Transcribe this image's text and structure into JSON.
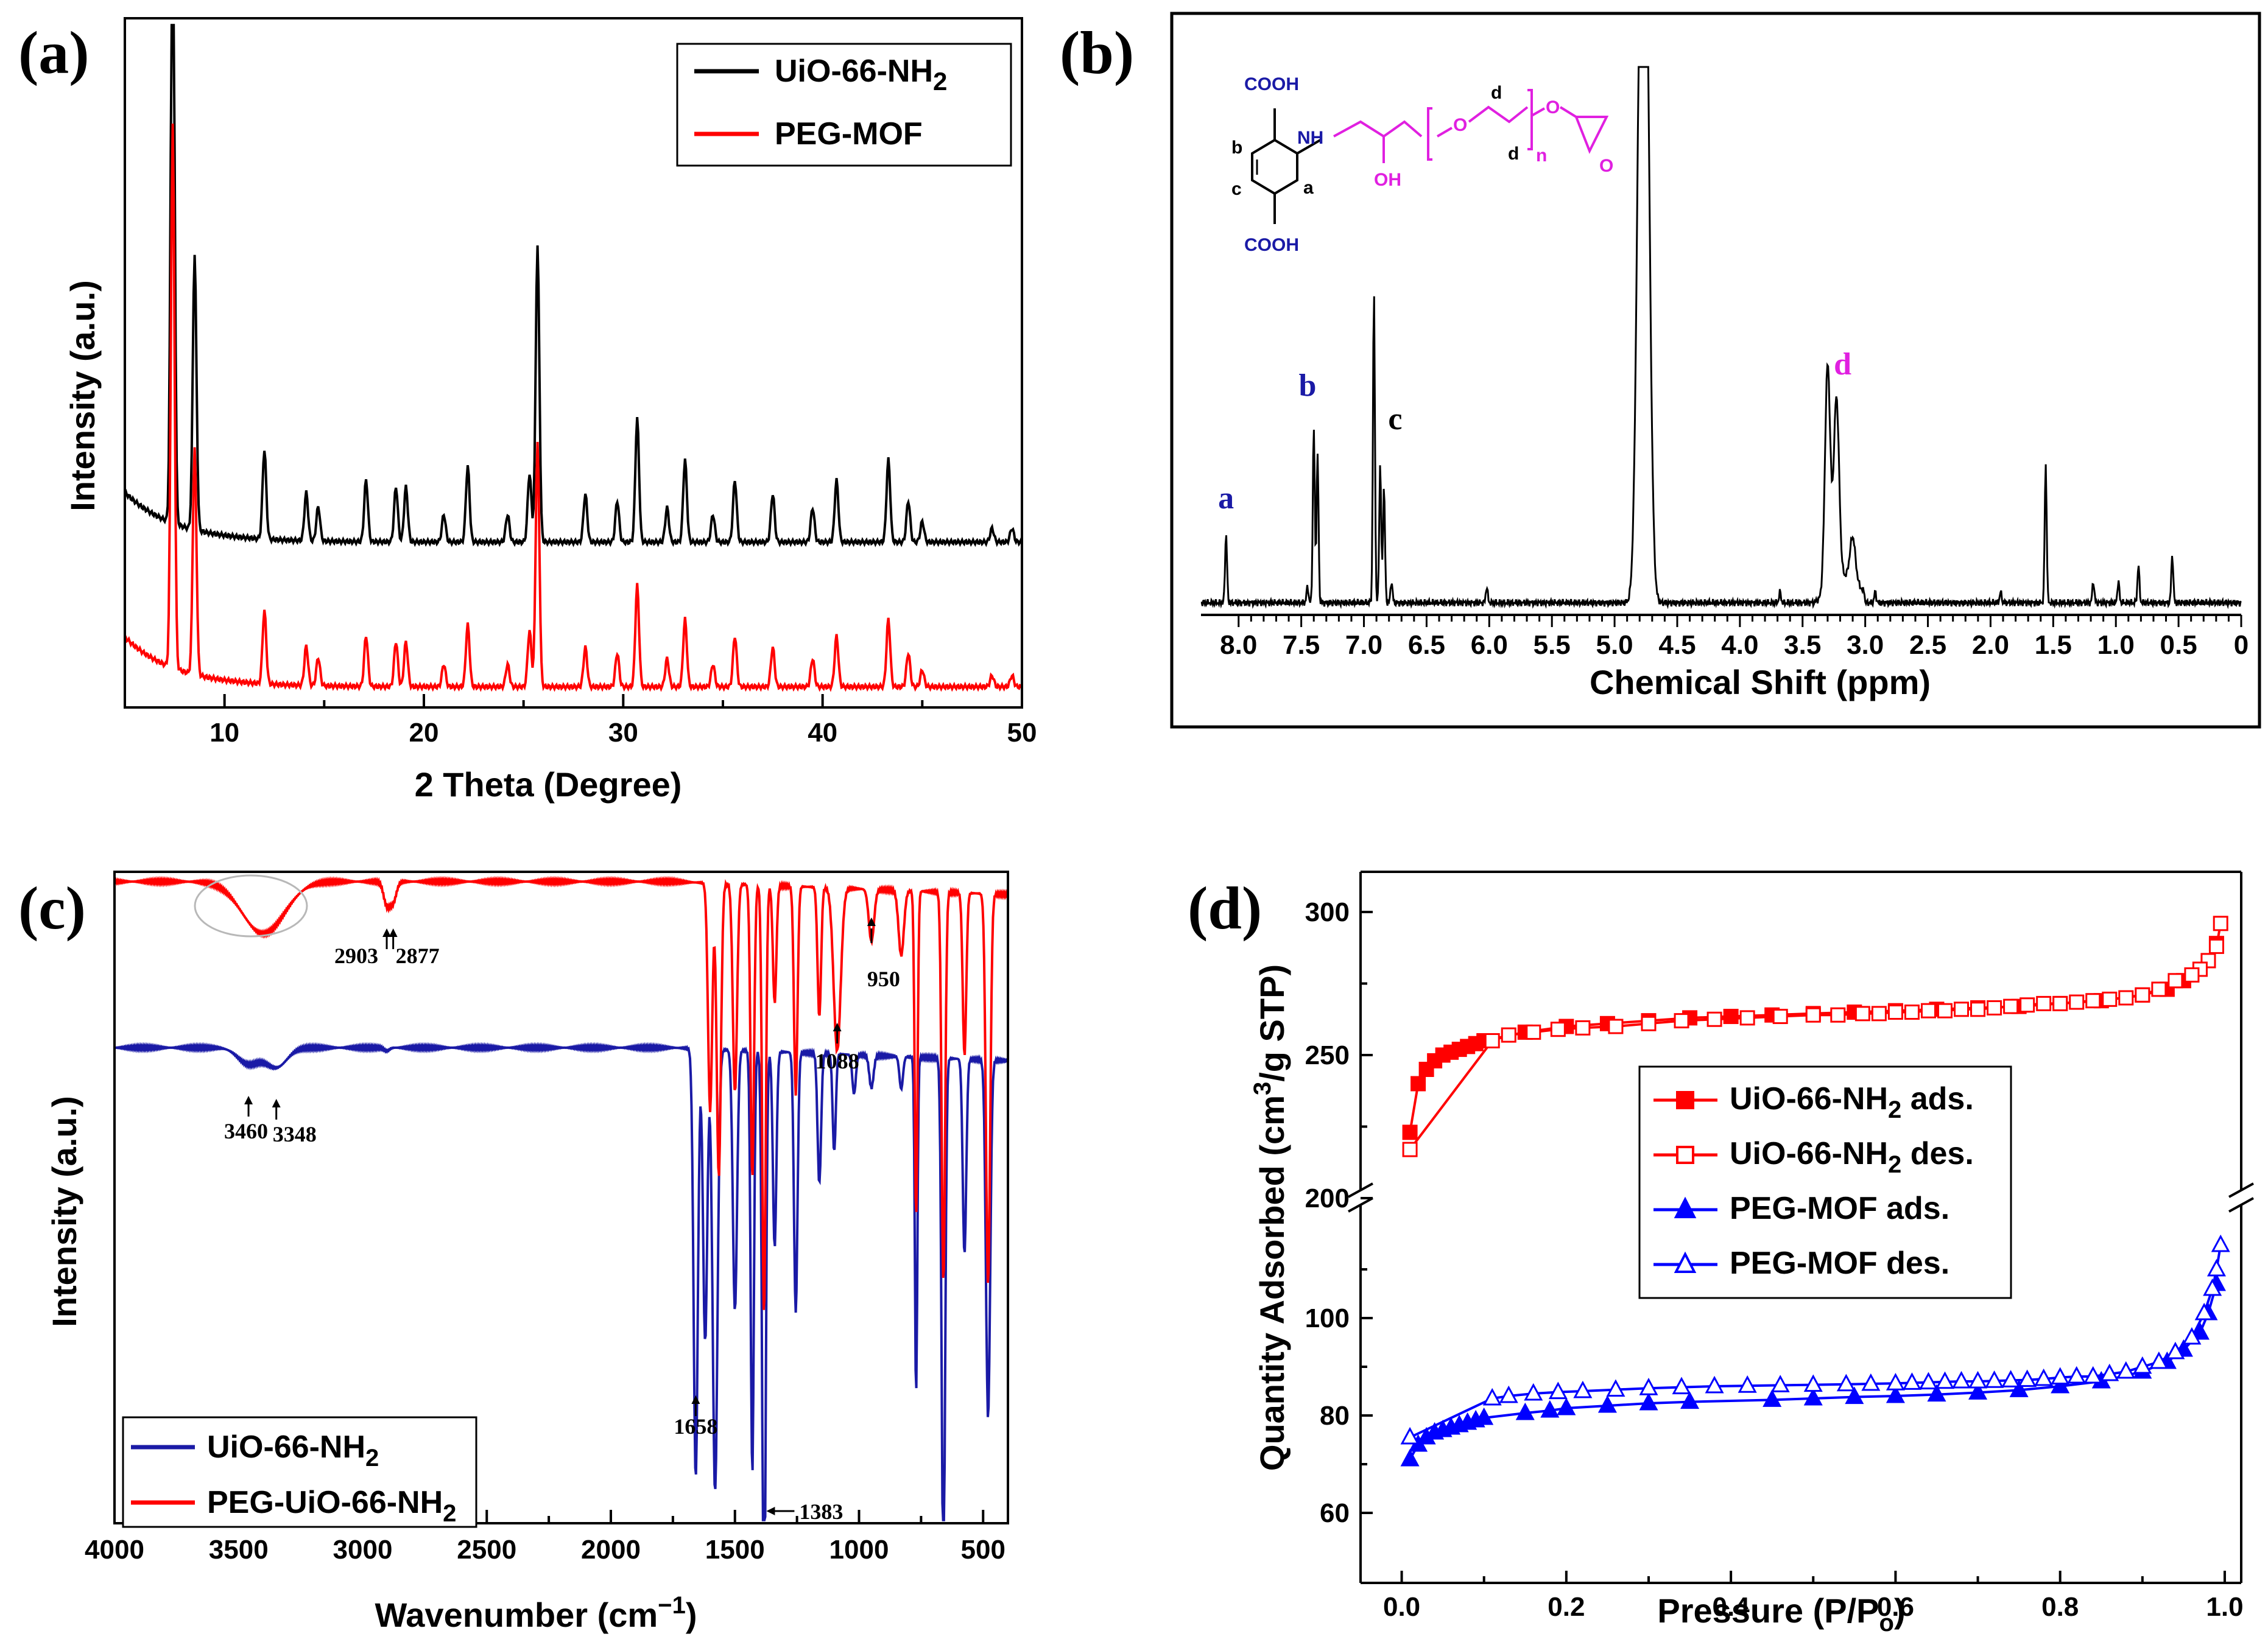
{
  "chart_data": [
    {
      "panel": "(a)",
      "type": "line",
      "xlabel": "2 Theta (Degree)",
      "ylabel": "Intensity (a.u.)",
      "xlim": [
        5,
        50
      ],
      "xticks": [
        10,
        20,
        30,
        40,
        50
      ],
      "series": [
        {
          "name": "UiO-66-NH",
          "sub": "2",
          "color": "#000000",
          "baseline": 0.24,
          "scale": 1.0
        },
        {
          "name": "PEG-MOF",
          "color": "#ff0000",
          "baseline": 0.03,
          "scale": 0.82
        }
      ],
      "peaks": [
        {
          "x": 7.4,
          "h": 0.96
        },
        {
          "x": 8.5,
          "h": 0.4
        },
        {
          "x": 12.0,
          "h": 0.13
        },
        {
          "x": 14.1,
          "h": 0.07
        },
        {
          "x": 14.7,
          "h": 0.05
        },
        {
          "x": 17.1,
          "h": 0.09
        },
        {
          "x": 18.6,
          "h": 0.08
        },
        {
          "x": 19.1,
          "h": 0.08
        },
        {
          "x": 21.0,
          "h": 0.04
        },
        {
          "x": 22.2,
          "h": 0.11
        },
        {
          "x": 24.2,
          "h": 0.04
        },
        {
          "x": 25.3,
          "h": 0.1
        },
        {
          "x": 25.7,
          "h": 0.43
        },
        {
          "x": 28.1,
          "h": 0.07
        },
        {
          "x": 29.7,
          "h": 0.06
        },
        {
          "x": 30.7,
          "h": 0.18
        },
        {
          "x": 32.2,
          "h": 0.05
        },
        {
          "x": 33.1,
          "h": 0.12
        },
        {
          "x": 34.5,
          "h": 0.04
        },
        {
          "x": 35.6,
          "h": 0.09
        },
        {
          "x": 37.5,
          "h": 0.07
        },
        {
          "x": 39.5,
          "h": 0.05
        },
        {
          "x": 40.7,
          "h": 0.09
        },
        {
          "x": 43.3,
          "h": 0.12
        },
        {
          "x": 44.3,
          "h": 0.06
        },
        {
          "x": 45.0,
          "h": 0.03
        },
        {
          "x": 48.5,
          "h": 0.02
        },
        {
          "x": 49.5,
          "h": 0.02
        }
      ]
    },
    {
      "panel": "(b)",
      "type": "line",
      "xlabel": "Chemical Shift (ppm)",
      "xlim": [
        8.3,
        0
      ],
      "xticks": [
        8.0,
        7.5,
        7.0,
        6.5,
        6.0,
        5.5,
        5.0,
        4.5,
        4.0,
        3.5,
        3.0,
        2.5,
        2.0,
        1.5,
        1.0,
        0.5,
        0
      ],
      "xtick_labels": [
        "8.0",
        "7.5",
        "7.0",
        "6.5",
        "6.0",
        "5.5",
        "5.0",
        "4.5",
        "4.0",
        "3.5",
        "3.0",
        "2.5",
        "2.0",
        "1.5",
        "1.0",
        "0.5",
        "0"
      ],
      "peaks": [
        {
          "x": 8.1,
          "h": 0.13
        },
        {
          "x": 7.45,
          "h": 0.03
        },
        {
          "x": 7.4,
          "h": 0.33
        },
        {
          "x": 7.37,
          "h": 0.28
        },
        {
          "x": 6.92,
          "h": 0.58
        },
        {
          "x": 6.87,
          "h": 0.26
        },
        {
          "x": 6.84,
          "h": 0.22
        },
        {
          "x": 6.78,
          "h": 0.04
        },
        {
          "x": 6.02,
          "h": 0.03
        },
        {
          "x": 4.79,
          "h": 1.0
        },
        {
          "x": 4.75,
          "h": 1.0
        },
        {
          "x": 3.68,
          "h": 0.02
        },
        {
          "x": 3.3,
          "h": 0.43
        },
        {
          "x": 3.23,
          "h": 0.35
        },
        {
          "x": 3.1,
          "h": 0.08
        },
        {
          "x": 2.92,
          "h": 0.02
        },
        {
          "x": 1.92,
          "h": 0.02
        },
        {
          "x": 1.56,
          "h": 0.26
        },
        {
          "x": 1.18,
          "h": 0.04
        },
        {
          "x": 0.98,
          "h": 0.04
        },
        {
          "x": 0.82,
          "h": 0.07
        },
        {
          "x": 0.55,
          "h": 0.09
        }
      ],
      "peak_labels": [
        {
          "text": "a",
          "x": 8.1,
          "color": "#1a1aa6"
        },
        {
          "text": "b",
          "x": 7.45,
          "color": "#1a1aa6"
        },
        {
          "text": "c",
          "x": 6.75,
          "color": "#000000"
        },
        {
          "text": "d",
          "x": 3.18,
          "color": "#e020e0"
        }
      ],
      "structure": {
        "cooh_top": "COOH",
        "cooh_bottom": "COOH",
        "nh": "NH",
        "oh": "OH",
        "o1": "O",
        "o2": "O",
        "o3": "O",
        "d1": "d",
        "d2": "d",
        "n": "n",
        "ring_b": "b",
        "ring_c": "c",
        "ring_a": "a"
      }
    },
    {
      "panel": "(c)",
      "type": "line",
      "xlabel": "Wavenumber (cm",
      "xlabel_sup": "−1",
      "xlabel_end": ")",
      "ylabel": "Intensity (a.u.)",
      "xlim": [
        4000,
        400
      ],
      "xticks": [
        4000,
        3500,
        3000,
        2500,
        2000,
        1500,
        1000,
        500
      ],
      "series": [
        {
          "name": "UiO-66-NH",
          "sub": "2",
          "color": "#1a1aa6",
          "baseline": 0.73
        },
        {
          "name": "PEG-UiO-66-NH",
          "sub": "2",
          "color": "#ff0000",
          "baseline": 0.985
        }
      ],
      "annotations": [
        "3460",
        "3348",
        "2903",
        "2877",
        "1658",
        "1383",
        "1088",
        "950"
      ]
    },
    {
      "panel": "(d)",
      "type": "scatter",
      "xlabel": "Pressure (P/P",
      "xlabel_sub": "o",
      "xlabel_end": ")",
      "ylabel": "Quantity Adsorbed (cm",
      "ylabel_sup": "3",
      "ylabel_end": "/g STP)",
      "xlim": [
        -0.05,
        1.02
      ],
      "xticks": [
        0.0,
        0.2,
        0.4,
        0.6,
        0.8,
        1.0
      ],
      "yticks_lower": [
        60,
        80,
        100
      ],
      "yticks_upper": [
        200,
        250,
        300
      ],
      "series": [
        {
          "name": "UiO-66-NH",
          "sub": "2",
          "suffix": " ads.",
          "color": "#ff0000",
          "marker": "square",
          "filled": true,
          "points": [
            [
              0.01,
              223
            ],
            [
              0.02,
              240
            ],
            [
              0.03,
              245
            ],
            [
              0.04,
              248
            ],
            [
              0.05,
              250
            ],
            [
              0.06,
              251
            ],
            [
              0.07,
              252
            ],
            [
              0.08,
              253
            ],
            [
              0.09,
              254
            ],
            [
              0.1,
              255
            ],
            [
              0.15,
              258
            ],
            [
              0.2,
              260
            ],
            [
              0.25,
              261
            ],
            [
              0.3,
              262
            ],
            [
              0.35,
              263
            ],
            [
              0.4,
              263.5
            ],
            [
              0.45,
              264
            ],
            [
              0.5,
              264.5
            ],
            [
              0.55,
              265
            ],
            [
              0.6,
              265.5
            ],
            [
              0.65,
              266
            ],
            [
              0.7,
              266.5
            ],
            [
              0.75,
              267
            ],
            [
              0.8,
              268
            ],
            [
              0.85,
              269
            ],
            [
              0.9,
              271
            ],
            [
              0.93,
              273
            ],
            [
              0.95,
              276
            ],
            [
              0.97,
              280
            ],
            [
              0.98,
              283
            ],
            [
              0.99,
              289
            ]
          ]
        },
        {
          "name": "UiO-66-NH",
          "sub": "2",
          "suffix": " des.",
          "color": "#ff0000",
          "marker": "square",
          "filled": false,
          "points": [
            [
              0.995,
              296
            ],
            [
              0.99,
              288
            ],
            [
              0.98,
              283
            ],
            [
              0.97,
              280
            ],
            [
              0.96,
              278
            ],
            [
              0.94,
              276
            ],
            [
              0.92,
              273
            ],
            [
              0.9,
              271
            ],
            [
              0.88,
              270
            ],
            [
              0.86,
              269.5
            ],
            [
              0.84,
              269
            ],
            [
              0.82,
              268.5
            ],
            [
              0.8,
              268
            ],
            [
              0.78,
              268
            ],
            [
              0.76,
              267.5
            ],
            [
              0.74,
              267
            ],
            [
              0.72,
              266.5
            ],
            [
              0.7,
              266
            ],
            [
              0.68,
              266
            ],
            [
              0.66,
              265.5
            ],
            [
              0.64,
              265.5
            ],
            [
              0.62,
              265
            ],
            [
              0.6,
              265
            ],
            [
              0.58,
              264.5
            ],
            [
              0.56,
              264.5
            ],
            [
              0.53,
              264
            ],
            [
              0.5,
              264
            ],
            [
              0.46,
              263.5
            ],
            [
              0.42,
              263
            ],
            [
              0.38,
              262.5
            ],
            [
              0.34,
              262
            ],
            [
              0.3,
              261
            ],
            [
              0.26,
              260
            ],
            [
              0.22,
              259.5
            ],
            [
              0.19,
              259
            ],
            [
              0.16,
              258
            ],
            [
              0.13,
              257
            ],
            [
              0.11,
              255
            ],
            [
              0.01,
              217
            ]
          ]
        },
        {
          "name": "PEG-MOF",
          "suffix": " ads.",
          "color": "#0000ff",
          "marker": "triangle",
          "filled": true,
          "points": [
            [
              0.01,
              71
            ],
            [
              0.02,
              74
            ],
            [
              0.03,
              75.5
            ],
            [
              0.04,
              76.5
            ],
            [
              0.05,
              77
            ],
            [
              0.06,
              77.5
            ],
            [
              0.07,
              78
            ],
            [
              0.08,
              78.5
            ],
            [
              0.09,
              79
            ],
            [
              0.1,
              79.5
            ],
            [
              0.15,
              80.5
            ],
            [
              0.18,
              81
            ],
            [
              0.2,
              81.5
            ],
            [
              0.25,
              82
            ],
            [
              0.3,
              82.5
            ],
            [
              0.35,
              82.8
            ],
            [
              0.45,
              83.2
            ],
            [
              0.5,
              83.5
            ],
            [
              0.55,
              83.8
            ],
            [
              0.6,
              84
            ],
            [
              0.65,
              84.3
            ],
            [
              0.7,
              84.7
            ],
            [
              0.75,
              85.2
            ],
            [
              0.8,
              86
            ],
            [
              0.85,
              87
            ],
            [
              0.9,
              89
            ],
            [
              0.93,
              91
            ],
            [
              0.95,
              93.5
            ],
            [
              0.97,
              97
            ],
            [
              0.98,
              101
            ],
            [
              0.99,
              107
            ]
          ]
        },
        {
          "name": "PEG-MOF",
          "suffix": " des.",
          "color": "#0000ff",
          "marker": "triangle",
          "filled": false,
          "points": [
            [
              0.995,
              115
            ],
            [
              0.99,
              110
            ],
            [
              0.985,
              106
            ],
            [
              0.975,
              101
            ],
            [
              0.96,
              96
            ],
            [
              0.94,
              93
            ],
            [
              0.92,
              91
            ],
            [
              0.9,
              90
            ],
            [
              0.88,
              89
            ],
            [
              0.86,
              88.5
            ],
            [
              0.84,
              88
            ],
            [
              0.82,
              88
            ],
            [
              0.8,
              87.8
            ],
            [
              0.78,
              87.5
            ],
            [
              0.76,
              87.3
            ],
            [
              0.74,
              87.2
            ],
            [
              0.72,
              87.1
            ],
            [
              0.7,
              87
            ],
            [
              0.68,
              87
            ],
            [
              0.66,
              86.9
            ],
            [
              0.64,
              86.8
            ],
            [
              0.62,
              86.7
            ],
            [
              0.6,
              86.6
            ],
            [
              0.57,
              86.5
            ],
            [
              0.54,
              86.4
            ],
            [
              0.5,
              86.3
            ],
            [
              0.46,
              86.2
            ],
            [
              0.42,
              86.1
            ],
            [
              0.38,
              86
            ],
            [
              0.34,
              85.8
            ],
            [
              0.3,
              85.6
            ],
            [
              0.26,
              85.3
            ],
            [
              0.22,
              85
            ],
            [
              0.19,
              84.8
            ],
            [
              0.16,
              84.5
            ],
            [
              0.13,
              84
            ],
            [
              0.11,
              83.5
            ],
            [
              0.01,
              75.5
            ]
          ]
        }
      ]
    }
  ]
}
